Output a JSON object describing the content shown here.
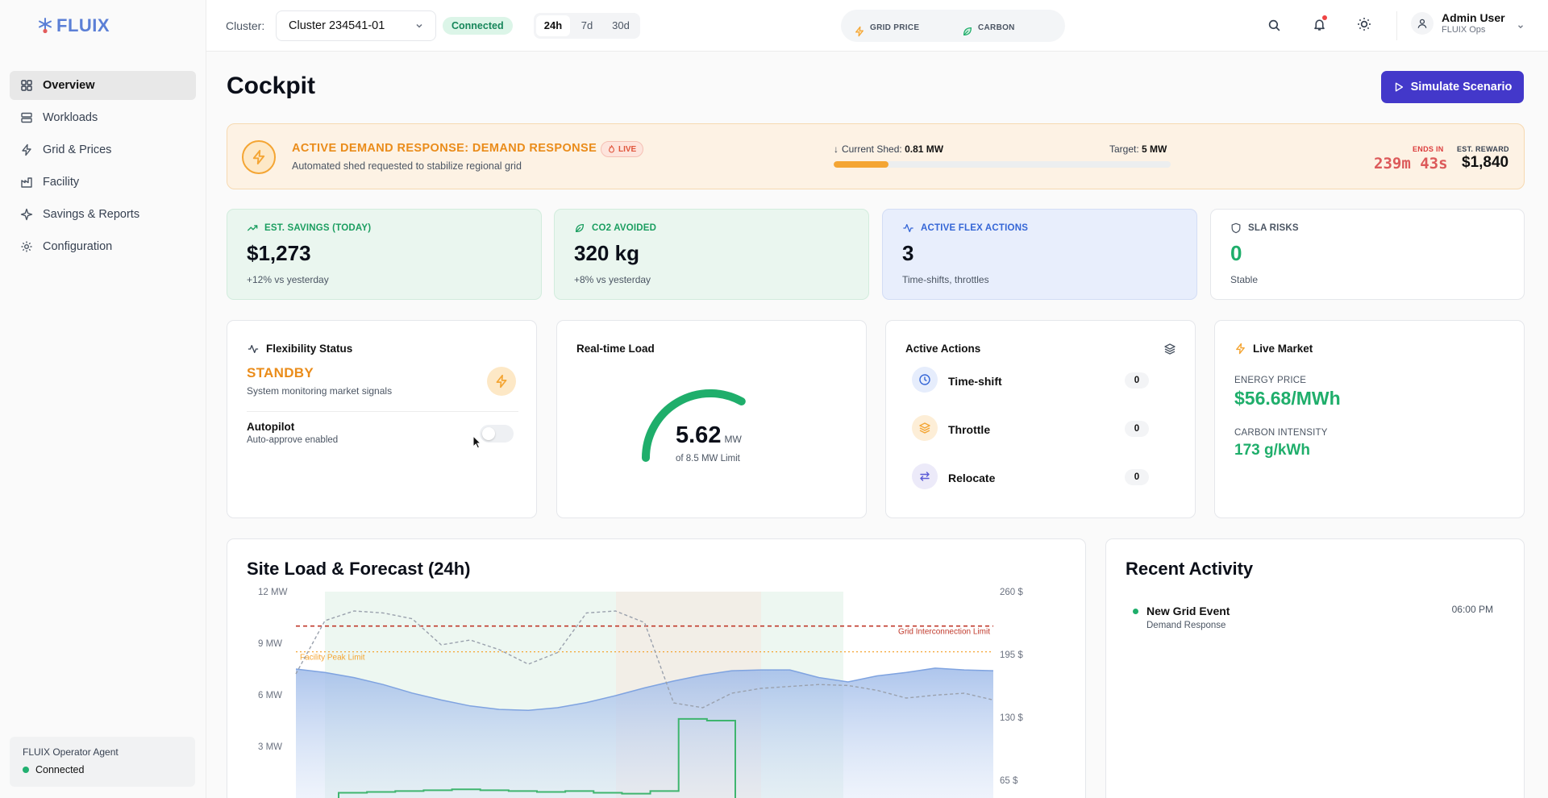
{
  "brand": {
    "name": "FLUIX"
  },
  "sidebar": {
    "items": [
      {
        "label": "Overview",
        "icon": "grid-icon",
        "active": true
      },
      {
        "label": "Workloads",
        "icon": "server-icon"
      },
      {
        "label": "Grid & Prices",
        "icon": "bolt-icon"
      },
      {
        "label": "Facility",
        "icon": "factory-icon"
      },
      {
        "label": "Savings & Reports",
        "icon": "sparkle-icon"
      },
      {
        "label": "Configuration",
        "icon": "gear-icon"
      }
    ],
    "agent": {
      "title": "FLUIX Operator Agent",
      "status": "Connected"
    }
  },
  "header": {
    "cluster_label": "Cluster:",
    "cluster_value": "Cluster 234541-01",
    "connection": "Connected",
    "ranges": [
      "24h",
      "7d",
      "30d"
    ],
    "active_range": "24h",
    "grid_price_label": "GRID PRICE",
    "carbon_label": "CARBON",
    "user_name": "Admin User",
    "user_org": "FLUIX Ops"
  },
  "page": {
    "title": "Cockpit",
    "simulate_label": "Simulate Scenario"
  },
  "banner": {
    "title": "ACTIVE DEMAND RESPONSE: DEMAND RESPONSE",
    "live": "LIVE",
    "subtitle": "Automated shed requested to stabilize regional grid",
    "shed_label": "Current Shed:",
    "shed_value": "0.81 MW",
    "target_label": "Target:",
    "target_value": "5 MW",
    "shed_progress_fraction": 0.162,
    "ends_label": "ENDS IN",
    "ends_value": "239m 43s",
    "reward_label": "EST. REWARD",
    "reward_value": "$1,840"
  },
  "kpis": {
    "savings": {
      "label": "EST. SAVINGS (TODAY)",
      "value": "$1,273",
      "sub": "+12% vs yesterday"
    },
    "co2": {
      "label": "CO2 AVOIDED",
      "value": "320 kg",
      "sub": "+8% vs yesterday"
    },
    "flex": {
      "label": "ACTIVE FLEX ACTIONS",
      "value": "3",
      "sub": "Time-shifts, throttles"
    },
    "sla": {
      "label": "SLA RISKS",
      "value": "0",
      "sub": "Stable"
    }
  },
  "flexibility": {
    "title": "Flexibility Status",
    "status": "STANDBY",
    "status_sub": "System monitoring market signals",
    "autopilot_label": "Autopilot",
    "autopilot_sub": "Auto-approve enabled"
  },
  "load": {
    "title": "Real-time Load",
    "value": "5.62",
    "unit": "MW",
    "limit_text": "of 8.5 MW Limit",
    "fraction": 0.661
  },
  "actions": {
    "title": "Active Actions",
    "items": [
      {
        "label": "Time-shift",
        "count": "0",
        "icon": "clock-icon"
      },
      {
        "label": "Throttle",
        "count": "0",
        "icon": "layers-icon"
      },
      {
        "label": "Relocate",
        "count": "0",
        "icon": "swap-icon"
      }
    ]
  },
  "market": {
    "title": "Live Market",
    "price_label": "ENERGY PRICE",
    "price_value": "$56.68/MWh",
    "carbon_label": "CARBON INTENSITY",
    "carbon_value": "173 g/kWh"
  },
  "activity": {
    "title": "Recent Activity",
    "items": [
      {
        "title": "New Grid Event",
        "sub": "Demand Response",
        "time": "06:00 PM"
      }
    ]
  },
  "colors": {
    "accent": "#4338ca",
    "brand": "#5b7fd6",
    "green": "#1fae6b",
    "orange": "#f4a533",
    "red": "#dc3d3d"
  },
  "chart_data": {
    "type": "line",
    "title": "Site Load & Forecast (24h)",
    "y_left": {
      "ticks": [
        "12 MW",
        "9 MW",
        "6 MW",
        "3 MW"
      ],
      "range": [
        0,
        12
      ]
    },
    "y_right": {
      "ticks": [
        "260 $",
        "195 $",
        "130 $",
        "65 $"
      ],
      "range": [
        0,
        260
      ]
    },
    "reference_lines": [
      {
        "label": "Grid Interconnection Limit",
        "value": 10.0,
        "color": "#c0392b"
      },
      {
        "label": "Facility Peak Limit",
        "value": 8.5,
        "color": "#f4a533"
      }
    ],
    "series": [
      {
        "type": "area",
        "axis": "left",
        "values": [
          7.5,
          7.3,
          7.0,
          6.6,
          6.1,
          5.7,
          5.35,
          5.15,
          5.1,
          5.25,
          5.55,
          5.95,
          6.4,
          6.8,
          7.15,
          7.4,
          7.45,
          7.45,
          7.0,
          6.75,
          7.1,
          7.3,
          7.55,
          7.45,
          7.4
        ]
      },
      {
        "type": "dashed",
        "axis": "right",
        "values": [
          175,
          230,
          240,
          238,
          232,
          205,
          210,
          200,
          185,
          197,
          238,
          240,
          228,
          145,
          140,
          155,
          160,
          162,
          164,
          163,
          158,
          150,
          153,
          155,
          148
        ]
      },
      {
        "type": "step",
        "axis": "left",
        "values": [
          0.3,
          0.35,
          0.4,
          0.45,
          0.5,
          0.45,
          0.4,
          0.35,
          0.4,
          0.3,
          0.25,
          0.4,
          4.6,
          4.5,
          0.0
        ]
      }
    ]
  }
}
